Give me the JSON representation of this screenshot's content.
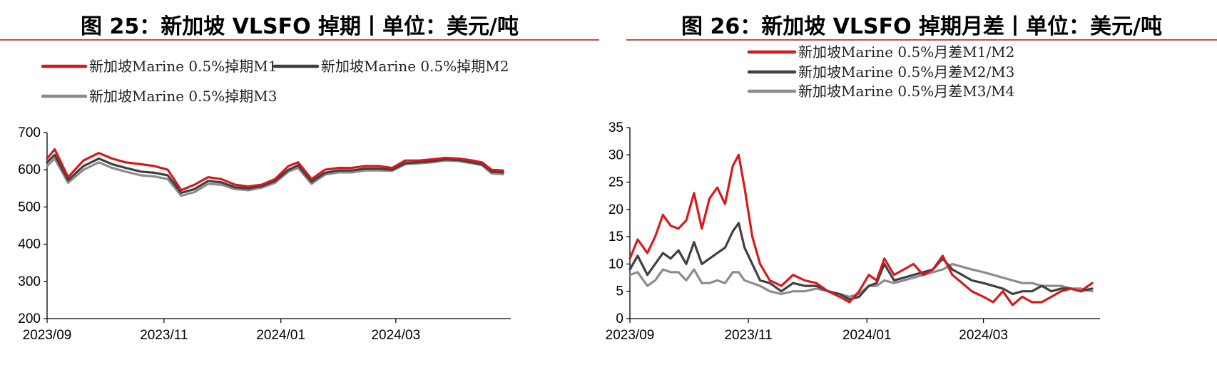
{
  "charts": [
    {
      "title": "图 25：新加坡 VLSFO 掉期丨单位：美元/吨",
      "chart_data": {
        "type": "line",
        "x_ticks": [
          "2023/09",
          "2023/11",
          "2024/01",
          "2024/03"
        ],
        "x_range": [
          "2023-09-01",
          "2024-04-30"
        ],
        "ylim": [
          200,
          700
        ],
        "y_ticks": [
          200,
          300,
          400,
          500,
          600,
          700
        ],
        "legend_placement": "top",
        "series": [
          {
            "name": "新加坡Marine 0.5%掉期M1",
            "color": "#d7191c",
            "x": [
              "2023-09-01",
              "2023-09-05",
              "2023-09-12",
              "2023-09-20",
              "2023-09-28",
              "2023-10-05",
              "2023-10-12",
              "2023-10-20",
              "2023-10-27",
              "2023-11-03",
              "2023-11-10",
              "2023-11-17",
              "2023-11-24",
              "2023-12-01",
              "2023-12-08",
              "2023-12-15",
              "2023-12-22",
              "2023-12-29",
              "2024-01-05",
              "2024-01-10",
              "2024-01-17",
              "2024-01-24",
              "2024-01-31",
              "2024-02-07",
              "2024-02-14",
              "2024-02-21",
              "2024-02-28",
              "2024-03-06",
              "2024-03-13",
              "2024-03-20",
              "2024-03-27",
              "2024-04-03",
              "2024-04-10",
              "2024-04-15",
              "2024-04-20",
              "2024-04-26"
            ],
            "values": [
              630,
              655,
              580,
              625,
              645,
              630,
              620,
              615,
              610,
              600,
              545,
              560,
              580,
              575,
              560,
              555,
              560,
              575,
              610,
              620,
              575,
              600,
              605,
              605,
              610,
              610,
              605,
              625,
              625,
              628,
              632,
              630,
              625,
              620,
              600,
              598
            ]
          },
          {
            "name": "新加坡Marine 0.5%掉期M2",
            "color": "#404040",
            "x": [
              "2023-09-01",
              "2023-09-05",
              "2023-09-12",
              "2023-09-20",
              "2023-09-28",
              "2023-10-05",
              "2023-10-12",
              "2023-10-20",
              "2023-10-27",
              "2023-11-03",
              "2023-11-10",
              "2023-11-17",
              "2023-11-24",
              "2023-12-01",
              "2023-12-08",
              "2023-12-15",
              "2023-12-22",
              "2023-12-29",
              "2024-01-05",
              "2024-01-10",
              "2024-01-17",
              "2024-01-24",
              "2024-01-31",
              "2024-02-07",
              "2024-02-14",
              "2024-02-21",
              "2024-02-28",
              "2024-03-06",
              "2024-03-13",
              "2024-03-20",
              "2024-03-27",
              "2024-04-03",
              "2024-04-10",
              "2024-04-15",
              "2024-04-20",
              "2024-04-26"
            ],
            "values": [
              620,
              640,
              572,
              610,
              630,
              615,
              605,
              595,
              592,
              585,
              538,
              548,
              570,
              566,
              553,
              550,
              556,
              570,
              600,
              612,
              568,
              592,
              598,
              598,
              603,
              603,
              600,
              618,
              620,
              623,
              628,
              626,
              620,
              615,
              595,
              593
            ]
          },
          {
            "name": "新加坡Marine 0.5%掉期M3",
            "color": "#8c8c8c",
            "x": [
              "2023-09-01",
              "2023-09-05",
              "2023-09-12",
              "2023-09-20",
              "2023-09-28",
              "2023-10-05",
              "2023-10-12",
              "2023-10-20",
              "2023-10-27",
              "2023-11-03",
              "2023-11-10",
              "2023-11-17",
              "2023-11-24",
              "2023-12-01",
              "2023-12-08",
              "2023-12-15",
              "2023-12-22",
              "2023-12-29",
              "2024-01-05",
              "2024-01-10",
              "2024-01-17",
              "2024-01-24",
              "2024-01-31",
              "2024-02-07",
              "2024-02-14",
              "2024-02-21",
              "2024-02-28",
              "2024-03-06",
              "2024-03-13",
              "2024-03-20",
              "2024-03-27",
              "2024-04-03",
              "2024-04-10",
              "2024-04-15",
              "2024-04-20",
              "2024-04-26"
            ],
            "values": [
              610,
              630,
              565,
              600,
              620,
              605,
              595,
              585,
              582,
              575,
              530,
              540,
              562,
              560,
              548,
              545,
              552,
              565,
              595,
              605,
              562,
              587,
              593,
              593,
              598,
              598,
              597,
              615,
              617,
              620,
              625,
              623,
              617,
              612,
              590,
              588
            ]
          }
        ]
      }
    },
    {
      "title": "图 26：新加坡 VLSFO 掉期月差丨单位：美元/吨",
      "chart_data": {
        "type": "line",
        "x_ticks": [
          "2023/09",
          "2023/11",
          "2024/01",
          "2024/03"
        ],
        "x_range": [
          "2023-09-01",
          "2024-04-30"
        ],
        "ylim": [
          0,
          35
        ],
        "y_ticks": [
          0,
          5,
          10,
          15,
          20,
          25,
          30,
          35
        ],
        "legend_placement": "top",
        "series": [
          {
            "name": "新加坡Marine 0.5%月差M1/M2",
            "color": "#d7191c",
            "x": [
              "2023-09-01",
              "2023-09-05",
              "2023-09-10",
              "2023-09-14",
              "2023-09-18",
              "2023-09-22",
              "2023-09-26",
              "2023-09-30",
              "2023-10-04",
              "2023-10-08",
              "2023-10-12",
              "2023-10-16",
              "2023-10-20",
              "2023-10-24",
              "2023-10-27",
              "2023-10-30",
              "2023-11-03",
              "2023-11-07",
              "2023-11-12",
              "2023-11-18",
              "2023-11-24",
              "2023-11-30",
              "2023-12-06",
              "2023-12-12",
              "2023-12-18",
              "2023-12-23",
              "2023-12-28",
              "2024-01-02",
              "2024-01-06",
              "2024-01-10",
              "2024-01-15",
              "2024-01-20",
              "2024-01-25",
              "2024-01-30",
              "2024-02-04",
              "2024-02-09",
              "2024-02-14",
              "2024-02-19",
              "2024-02-24",
              "2024-03-01",
              "2024-03-06",
              "2024-03-11",
              "2024-03-16",
              "2024-03-21",
              "2024-03-26",
              "2024-03-31",
              "2024-04-05",
              "2024-04-10",
              "2024-04-15",
              "2024-04-20",
              "2024-04-26"
            ],
            "values": [
              11,
              14.5,
              12,
              15,
              19,
              17,
              16.5,
              18,
              23,
              16.5,
              22,
              24,
              21,
              28,
              30,
              24,
              15,
              10,
              7,
              6,
              8,
              7,
              6.5,
              5,
              4,
              3,
              5,
              8,
              7,
              11,
              8,
              9,
              10,
              8,
              9,
              11.5,
              8,
              6.5,
              5,
              4,
              3,
              5,
              2.5,
              4,
              3,
              3,
              4,
              5,
              5.5,
              5,
              6.5
            ]
          },
          {
            "name": "新加坡Marine 0.5%月差M2/M3",
            "color": "#404040",
            "x": [
              "2023-09-01",
              "2023-09-05",
              "2023-09-10",
              "2023-09-14",
              "2023-09-18",
              "2023-09-22",
              "2023-09-26",
              "2023-09-30",
              "2023-10-04",
              "2023-10-08",
              "2023-10-12",
              "2023-10-16",
              "2023-10-20",
              "2023-10-24",
              "2023-10-27",
              "2023-10-30",
              "2023-11-03",
              "2023-11-07",
              "2023-11-12",
              "2023-11-18",
              "2023-11-24",
              "2023-11-30",
              "2023-12-06",
              "2023-12-12",
              "2023-12-18",
              "2023-12-23",
              "2023-12-28",
              "2024-01-02",
              "2024-01-06",
              "2024-01-10",
              "2024-01-15",
              "2024-01-20",
              "2024-01-25",
              "2024-01-30",
              "2024-02-04",
              "2024-02-09",
              "2024-02-14",
              "2024-02-19",
              "2024-02-24",
              "2024-03-01",
              "2024-03-06",
              "2024-03-11",
              "2024-03-16",
              "2024-03-21",
              "2024-03-26",
              "2024-03-31",
              "2024-04-05",
              "2024-04-10",
              "2024-04-15",
              "2024-04-20",
              "2024-04-26"
            ],
            "values": [
              9,
              11.5,
              8,
              10,
              12,
              11,
              12.5,
              10,
              14,
              10,
              11,
              12,
              13,
              16,
              17.5,
              13,
              10,
              7,
              6.5,
              5,
              6.5,
              6,
              6,
              5,
              4.5,
              3.5,
              4,
              6,
              6.5,
              10,
              7,
              7.5,
              8,
              8.5,
              9,
              11,
              9,
              8,
              7,
              6.5,
              6,
              5.5,
              4.5,
              5,
              5,
              6,
              5,
              5.5,
              5.5,
              5,
              5.5
            ]
          },
          {
            "name": "新加坡Marine 0.5%月差M3/M4",
            "color": "#8c8c8c",
            "x": [
              "2023-09-01",
              "2023-09-05",
              "2023-09-10",
              "2023-09-14",
              "2023-09-18",
              "2023-09-22",
              "2023-09-26",
              "2023-09-30",
              "2023-10-04",
              "2023-10-08",
              "2023-10-12",
              "2023-10-16",
              "2023-10-20",
              "2023-10-24",
              "2023-10-27",
              "2023-10-30",
              "2023-11-03",
              "2023-11-07",
              "2023-11-12",
              "2023-11-18",
              "2023-11-24",
              "2023-11-30",
              "2023-12-06",
              "2023-12-12",
              "2023-12-18",
              "2023-12-23",
              "2023-12-28",
              "2024-01-02",
              "2024-01-06",
              "2024-01-10",
              "2024-01-15",
              "2024-01-20",
              "2024-01-25",
              "2024-01-30",
              "2024-02-04",
              "2024-02-09",
              "2024-02-14",
              "2024-02-19",
              "2024-02-24",
              "2024-03-01",
              "2024-03-06",
              "2024-03-11",
              "2024-03-16",
              "2024-03-21",
              "2024-03-26",
              "2024-03-31",
              "2024-04-05",
              "2024-04-10",
              "2024-04-15",
              "2024-04-20",
              "2024-04-26"
            ],
            "values": [
              8,
              8.5,
              6,
              7,
              9,
              8.5,
              8.5,
              7,
              9,
              6.5,
              6.5,
              7,
              6.5,
              8.5,
              8.5,
              7,
              6.5,
              6,
              5,
              4.5,
              5,
              5,
              5.5,
              5,
              4.5,
              4,
              4.5,
              6,
              6,
              7,
              6.5,
              7,
              7.5,
              8,
              8.5,
              9,
              10,
              9.5,
              9,
              8.5,
              8,
              7.5,
              7,
              6.5,
              6.5,
              6,
              6,
              6,
              5.5,
              5.5,
              5
            ]
          }
        ]
      }
    }
  ]
}
